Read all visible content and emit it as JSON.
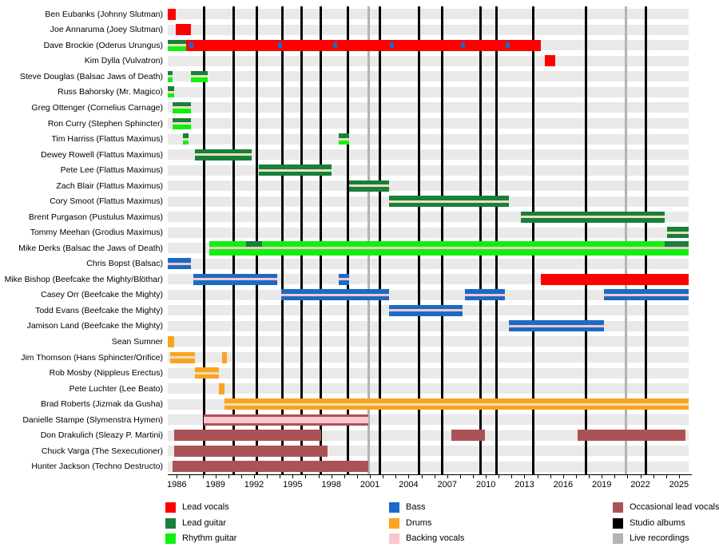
{
  "chart_data": {
    "type": "bar",
    "subtype": "membership-timeline-gantt",
    "title": "",
    "x_domain": [
      1985.3,
      2025.75
    ],
    "x_ticks": [
      1986,
      1989,
      1992,
      1995,
      1998,
      2001,
      2004,
      2007,
      2010,
      2013,
      2016,
      2019,
      2022,
      2025
    ],
    "minor_tick_step": 1,
    "grid": "off",
    "legend_position": "bottom",
    "colors": {
      "lead_vocals": "#ff0000",
      "lead_guitar": "#17803c",
      "rhythm_guitar": "#10f010",
      "bass": "#1a6bc5",
      "drums": "#faa41e",
      "backing_vocals": "#fcc6cc",
      "occasional_lead_vocals": "#ab5257",
      "studio_albums": "#000000",
      "live_recordings": "#b3b3b3",
      "row_band": "#e9e9e9",
      "stripe_cream": "#efe0b8",
      "stripe_pink": "#fbc4cc"
    },
    "event_lines": {
      "studio_albums": [
        1988.1,
        1990.4,
        1992.2,
        1994.2,
        1995.7,
        1997.2,
        1999.3,
        2001.8,
        2004.8,
        2006.6,
        2009.6,
        2010.8,
        2013.7,
        2017.8,
        2022.4
      ],
      "live_recordings": [
        2000.9,
        2020.9
      ]
    },
    "rows": [
      {
        "label": "Ben Eubanks (Johnny Slutman)",
        "bars": [
          {
            "start": 1985.3,
            "end": 1985.9,
            "role": "lead_vocals"
          }
        ]
      },
      {
        "label": "Joe Annaruma (Joey Slutman)",
        "bars": [
          {
            "start": 1985.9,
            "end": 1987.1,
            "role": "lead_vocals"
          }
        ]
      },
      {
        "label": "Dave Brockie (Oderus Urungus)",
        "bars": [
          {
            "start": 1985.3,
            "end": 1986.7,
            "split": [
              "lead_guitar",
              "rhythm_guitar"
            ],
            "stripe": "cream"
          },
          {
            "start": 1986.7,
            "end": 2014.25,
            "role": "lead_vocals",
            "dots": [
              1987.1,
              1994.0,
              1998.3,
              2002.7,
              2008.2,
              2011.7
            ]
          }
        ]
      },
      {
        "label": "Kim Dylla (Vulvatron)",
        "bars": [
          {
            "start": 2014.6,
            "end": 2015.4,
            "role": "lead_vocals"
          }
        ]
      },
      {
        "label": "Steve Douglas (Balsac Jaws of Death)",
        "bars": [
          {
            "start": 1985.3,
            "end": 1985.7,
            "split": [
              "lead_guitar",
              "rhythm_guitar"
            ],
            "stripe": "cream"
          },
          {
            "start": 1987.1,
            "end": 1988.4,
            "split": [
              "lead_guitar",
              "rhythm_guitar"
            ],
            "stripe": "cream"
          }
        ]
      },
      {
        "label": "Russ Bahorsky (Mr. Magico)",
        "bars": [
          {
            "start": 1985.3,
            "end": 1985.8,
            "split": [
              "lead_guitar",
              "rhythm_guitar"
            ],
            "stripe": "cream"
          }
        ]
      },
      {
        "label": "Greg Ottenger (Cornelius Carnage)",
        "bars": [
          {
            "start": 1985.7,
            "end": 1987.1,
            "split": [
              "lead_guitar",
              "rhythm_guitar"
            ],
            "stripe": "cream"
          }
        ]
      },
      {
        "label": "Ron Curry (Stephen Sphincter)",
        "bars": [
          {
            "start": 1985.7,
            "end": 1987.1,
            "split": [
              "lead_guitar",
              "rhythm_guitar"
            ],
            "stripe": "cream"
          }
        ]
      },
      {
        "label": "Tim Harriss (Flattus Maximus)",
        "bars": [
          {
            "start": 1986.5,
            "end": 1986.9,
            "split": [
              "lead_guitar",
              "rhythm_guitar"
            ],
            "stripe": "cream"
          },
          {
            "start": 1998.6,
            "end": 1999.4,
            "split": [
              "lead_guitar",
              "rhythm_guitar"
            ],
            "stripe": "cream"
          }
        ]
      },
      {
        "label": "Dewey Rowell (Flattus Maximus)",
        "bars": [
          {
            "start": 1987.4,
            "end": 1991.8,
            "role": "lead_guitar",
            "stripe": "cream"
          }
        ]
      },
      {
        "label": "Pete Lee (Flattus Maximus)",
        "bars": [
          {
            "start": 1992.4,
            "end": 1998.0,
            "role": "lead_guitar",
            "stripe": "cream"
          }
        ]
      },
      {
        "label": "Zach Blair (Flattus Maximus)",
        "bars": [
          {
            "start": 1999.4,
            "end": 2002.5,
            "role": "lead_guitar",
            "stripe": "cream"
          }
        ]
      },
      {
        "label": "Cory Smoot (Flattus Maximus)",
        "bars": [
          {
            "start": 2002.5,
            "end": 2011.8,
            "role": "lead_guitar",
            "stripe": "cream"
          }
        ]
      },
      {
        "label": "Brent Purgason (Pustulus Maximus)",
        "bars": [
          {
            "start": 2012.7,
            "end": 2023.9,
            "role": "lead_guitar",
            "stripe": "cream"
          }
        ]
      },
      {
        "label": "Tommy Meehan (Grodius Maximus)",
        "bars": [
          {
            "start": 2024.1,
            "end": 2025.75,
            "role": "lead_guitar",
            "stripe": "cream"
          }
        ]
      },
      {
        "label": "Mike Derks (Balsac the Jaws of Death)",
        "bars": [
          {
            "start": 1988.5,
            "end": 2025.75,
            "role": "rhythm_guitar",
            "stripe": "pink",
            "tall": true,
            "overlays": [
              {
                "start": 1991.4,
                "end": 1992.6,
                "role": "lead_guitar"
              },
              {
                "start": 2023.9,
                "end": 2025.75,
                "role": "lead_guitar"
              }
            ]
          }
        ]
      },
      {
        "label": "Chris Bopst (Balsac)",
        "bars": [
          {
            "start": 1985.3,
            "end": 1987.1,
            "role": "bass",
            "stripe": "pink"
          }
        ]
      },
      {
        "label": "Mike Bishop (Beefcake the Mighty/Blöthar)",
        "bars": [
          {
            "start": 1987.3,
            "end": 1993.8,
            "role": "bass",
            "stripe": "pink"
          },
          {
            "start": 1998.6,
            "end": 1999.4,
            "role": "bass",
            "stripe": "pink"
          },
          {
            "start": 2014.3,
            "end": 2025.75,
            "role": "lead_vocals"
          }
        ]
      },
      {
        "label": "Casey Orr (Beefcake the Mighty)",
        "bars": [
          {
            "start": 1994.1,
            "end": 2002.5,
            "role": "bass",
            "stripe": "pink"
          },
          {
            "start": 2008.4,
            "end": 2011.5,
            "role": "bass",
            "stripe": "pink"
          },
          {
            "start": 2019.2,
            "end": 2025.75,
            "role": "bass",
            "stripe": "pink"
          }
        ]
      },
      {
        "label": "Todd Evans (Beefcake the Mighty)",
        "bars": [
          {
            "start": 2002.5,
            "end": 2008.2,
            "role": "bass",
            "stripe": "pink"
          }
        ]
      },
      {
        "label": "Jamison Land (Beefcake the Mighty)",
        "bars": [
          {
            "start": 2011.8,
            "end": 2019.2,
            "role": "bass",
            "stripe": "pink"
          }
        ]
      },
      {
        "label": "Sean Sumner",
        "bars": [
          {
            "start": 1985.3,
            "end": 1985.8,
            "role": "drums"
          }
        ]
      },
      {
        "label": "Jim Thomson (Hans Sphincter/Orifice)",
        "bars": [
          {
            "start": 1985.5,
            "end": 1987.4,
            "role": "drums",
            "stripe": "cream"
          },
          {
            "start": 1989.5,
            "end": 1989.9,
            "role": "drums"
          }
        ]
      },
      {
        "label": "Rob Mosby (Nippleus Erectus)",
        "bars": [
          {
            "start": 1987.4,
            "end": 1989.3,
            "role": "drums",
            "stripe": "cream"
          }
        ]
      },
      {
        "label": "Pete Luchter (Lee Beato)",
        "bars": [
          {
            "start": 1989.3,
            "end": 1989.7,
            "role": "drums"
          }
        ]
      },
      {
        "label": "Brad Roberts (Jizmak da Gusha)",
        "bars": [
          {
            "start": 1989.7,
            "end": 2025.75,
            "role": "drums",
            "stripe": "cream"
          }
        ]
      },
      {
        "label": "Danielle Stampe (Slymenstra Hymen)",
        "bars": [
          {
            "start": 1988.1,
            "end": 2000.9,
            "role": "backing_vocals",
            "edge": "occasional_lead_vocals"
          }
        ]
      },
      {
        "label": "Don Drakulich (Sleazy P. Martini)",
        "bars": [
          {
            "start": 1985.8,
            "end": 1997.2,
            "role": "occasional_lead_vocals"
          },
          {
            "start": 2007.3,
            "end": 2009.9,
            "role": "occasional_lead_vocals"
          },
          {
            "start": 2017.1,
            "end": 2025.5,
            "role": "occasional_lead_vocals"
          }
        ]
      },
      {
        "label": "Chuck Varga (The Sexecutioner)",
        "bars": [
          {
            "start": 1985.8,
            "end": 1997.7,
            "role": "occasional_lead_vocals"
          }
        ]
      },
      {
        "label": "Hunter Jackson (Techno Destructo)",
        "bars": [
          {
            "start": 1985.7,
            "end": 2000.9,
            "role": "occasional_lead_vocals"
          }
        ]
      }
    ],
    "legend": [
      {
        "items": [
          {
            "label": "Lead vocals",
            "role": "lead_vocals"
          },
          {
            "label": "Lead guitar",
            "role": "lead_guitar"
          },
          {
            "label": "Rhythm guitar",
            "role": "rhythm_guitar"
          }
        ]
      },
      {
        "items": [
          {
            "label": "Bass",
            "role": "bass"
          },
          {
            "label": "Drums",
            "role": "drums"
          },
          {
            "label": "Backing vocals",
            "role": "backing_vocals"
          }
        ]
      },
      {
        "items": [
          {
            "label": "Occasional lead vocals",
            "role": "occasional_lead_vocals"
          },
          {
            "label": "Studio albums",
            "role": "studio_albums"
          },
          {
            "label": "Live recordings",
            "role": "live_recordings"
          }
        ]
      }
    ]
  }
}
